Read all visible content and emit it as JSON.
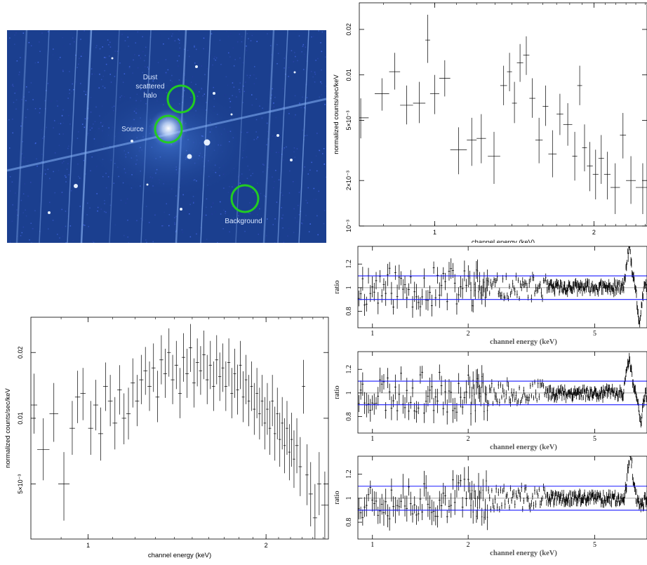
{
  "image_panel": {
    "labels": {
      "halo": [
        "Dust",
        "scattered",
        "halo"
      ],
      "source": "Source",
      "background": "Background"
    },
    "colors": {
      "sky": "#1b3f8f",
      "bright": "#bcd7ff",
      "circle": "#22cc22",
      "label": "#d8e6ff"
    }
  },
  "chart_data": [
    {
      "id": "halo-spectrum",
      "type": "scatter",
      "xlabel": "channel energy (keV)",
      "ylabel": "normalized counts/sec/keV",
      "xscale": "log",
      "yscale": "log",
      "xlim": [
        0.72,
        2.52
      ],
      "ylim": [
        0.001,
        0.03
      ],
      "xticks": [
        {
          "v": 1,
          "label": "1"
        },
        {
          "v": 2,
          "label": "2"
        }
      ],
      "yticks": [
        {
          "v": 0.001,
          "label": "10⁻³"
        },
        {
          "v": 0.002,
          "label": "2×10⁻³"
        },
        {
          "v": 0.005,
          "label": "5×10⁻³"
        },
        {
          "v": 0.01,
          "label": "0.01"
        },
        {
          "v": 0.02,
          "label": "0.02"
        }
      ],
      "points": [
        [
          0.7,
          0.75,
          0.0052,
          0.0038,
          0.007
        ],
        [
          0.77,
          0.82,
          0.0075,
          0.0058,
          0.0095
        ],
        [
          0.82,
          0.86,
          0.0105,
          0.008,
          0.014
        ],
        [
          0.86,
          0.91,
          0.0063,
          0.0047,
          0.0085
        ],
        [
          0.91,
          0.96,
          0.0065,
          0.0048,
          0.009
        ],
        [
          0.96,
          0.98,
          0.017,
          0.012,
          0.025
        ],
        [
          0.98,
          1.02,
          0.0075,
          0.0055,
          0.01
        ],
        [
          1.02,
          1.07,
          0.0095,
          0.0072,
          0.0125
        ],
        [
          1.07,
          1.15,
          0.0032,
          0.0022,
          0.0045
        ],
        [
          1.15,
          1.2,
          0.0037,
          0.0025,
          0.0052
        ],
        [
          1.2,
          1.25,
          0.0038,
          0.0026,
          0.0055
        ],
        [
          1.26,
          1.33,
          0.0029,
          0.0019,
          0.0042
        ],
        [
          1.33,
          1.37,
          0.0085,
          0.0063,
          0.0115
        ],
        [
          1.37,
          1.4,
          0.0105,
          0.0078,
          0.014
        ],
        [
          1.4,
          1.43,
          0.0065,
          0.0048,
          0.009
        ],
        [
          1.43,
          1.47,
          0.012,
          0.009,
          0.016
        ],
        [
          1.47,
          1.51,
          0.0135,
          0.01,
          0.018
        ],
        [
          1.51,
          1.55,
          0.007,
          0.0052,
          0.0095
        ],
        [
          1.55,
          1.6,
          0.0037,
          0.0026,
          0.0052
        ],
        [
          1.6,
          1.64,
          0.0062,
          0.0046,
          0.0085
        ],
        [
          1.64,
          1.7,
          0.003,
          0.0021,
          0.0043
        ],
        [
          1.7,
          1.75,
          0.0055,
          0.004,
          0.0075
        ],
        [
          1.75,
          1.82,
          0.0047,
          0.0034,
          0.0065
        ],
        [
          1.82,
          1.86,
          0.0029,
          0.002,
          0.0042
        ],
        [
          1.86,
          1.9,
          0.0085,
          0.0063,
          0.0115
        ],
        [
          1.9,
          1.94,
          0.0033,
          0.0023,
          0.0047
        ],
        [
          1.94,
          1.99,
          0.0025,
          0.0017,
          0.0036
        ],
        [
          1.99,
          2.04,
          0.0022,
          0.0015,
          0.0032
        ],
        [
          2.04,
          2.09,
          0.0028,
          0.0019,
          0.004
        ],
        [
          2.09,
          2.15,
          0.0022,
          0.0015,
          0.0031
        ],
        [
          2.15,
          2.24,
          0.0018,
          0.0012,
          0.0026
        ],
        [
          2.24,
          2.3,
          0.004,
          0.0028,
          0.0056
        ],
        [
          2.3,
          2.4,
          0.002,
          0.0014,
          0.0029
        ],
        [
          2.4,
          2.55,
          0.0018,
          0.0012,
          0.0026
        ]
      ]
    },
    {
      "id": "source-spectrum",
      "type": "scatter",
      "xlabel": "channel energy (keV)",
      "ylabel": "normalized counts/sec/keV",
      "xscale": "log",
      "yscale": "log",
      "xlim": [
        0.8,
        2.55
      ],
      "ylim": [
        0.0028,
        0.029
      ],
      "xticks": [
        {
          "v": 1,
          "label": "1"
        },
        {
          "v": 2,
          "label": "2"
        }
      ],
      "yticks": [
        {
          "v": 0.005,
          "label": "5×10⁻³"
        },
        {
          "v": 0.01,
          "label": "0.01"
        },
        {
          "v": 0.02,
          "label": "0.02"
        }
      ],
      "model": {
        "x": [
          0.8,
          0.95,
          1.2,
          1.5,
          1.7,
          1.85,
          2.0,
          2.2,
          2.4,
          2.55
        ],
        "y": [
          0.006,
          0.0075,
          0.0105,
          0.014,
          0.015,
          0.014,
          0.0115,
          0.009,
          0.0065,
          0.005
        ]
      },
      "points": [
        [
          0.8,
          0.82,
          0.0115,
          0.0085,
          0.016
        ],
        [
          0.82,
          0.86,
          0.0072,
          0.0052,
          0.01
        ],
        [
          0.86,
          0.89,
          0.0105,
          0.0078,
          0.0145
        ],
        [
          0.89,
          0.93,
          0.005,
          0.0034,
          0.007
        ],
        [
          0.93,
          0.95,
          0.009,
          0.0068,
          0.012
        ],
        [
          0.95,
          0.97,
          0.0125,
          0.0095,
          0.0165
        ],
        [
          0.97,
          0.99,
          0.013,
          0.0098,
          0.017
        ],
        [
          1.0,
          1.02,
          0.009,
          0.0068,
          0.012
        ],
        [
          1.02,
          1.04,
          0.0115,
          0.0088,
          0.015
        ],
        [
          1.04,
          1.06,
          0.0085,
          0.0064,
          0.0112
        ],
        [
          1.06,
          1.08,
          0.014,
          0.0108,
          0.018
        ],
        [
          1.08,
          1.1,
          0.012,
          0.0092,
          0.0158
        ],
        [
          1.1,
          1.12,
          0.0095,
          0.0072,
          0.0125
        ],
        [
          1.12,
          1.14,
          0.0135,
          0.0104,
          0.0175
        ],
        [
          1.14,
          1.16,
          0.01,
          0.0076,
          0.013
        ],
        [
          1.16,
          1.18,
          0.0105,
          0.008,
          0.0138
        ],
        [
          1.18,
          1.2,
          0.0145,
          0.0112,
          0.0188
        ],
        [
          1.2,
          1.22,
          0.012,
          0.0092,
          0.0158
        ],
        [
          1.22,
          1.24,
          0.015,
          0.0116,
          0.0195
        ],
        [
          1.24,
          1.26,
          0.0165,
          0.0128,
          0.0212
        ],
        [
          1.26,
          1.28,
          0.014,
          0.0108,
          0.0182
        ],
        [
          1.28,
          1.3,
          0.017,
          0.0132,
          0.022
        ],
        [
          1.3,
          1.32,
          0.0125,
          0.0096,
          0.0165
        ],
        [
          1.32,
          1.34,
          0.0185,
          0.0143,
          0.024
        ],
        [
          1.34,
          1.36,
          0.016,
          0.0124,
          0.0208
        ],
        [
          1.36,
          1.38,
          0.02,
          0.0155,
          0.0258
        ],
        [
          1.38,
          1.4,
          0.015,
          0.0116,
          0.0195
        ],
        [
          1.4,
          1.42,
          0.0175,
          0.0136,
          0.0226
        ],
        [
          1.42,
          1.44,
          0.013,
          0.01,
          0.017
        ],
        [
          1.44,
          1.46,
          0.019,
          0.0147,
          0.0245
        ],
        [
          1.46,
          1.48,
          0.016,
          0.0124,
          0.0208
        ],
        [
          1.48,
          1.5,
          0.021,
          0.0163,
          0.027
        ],
        [
          1.5,
          1.52,
          0.0145,
          0.0112,
          0.0188
        ],
        [
          1.52,
          1.54,
          0.018,
          0.014,
          0.0232
        ],
        [
          1.54,
          1.56,
          0.0165,
          0.0128,
          0.0214
        ],
        [
          1.56,
          1.58,
          0.0195,
          0.0151,
          0.0252
        ],
        [
          1.58,
          1.6,
          0.015,
          0.0116,
          0.0195
        ],
        [
          1.6,
          1.62,
          0.0175,
          0.0136,
          0.0226
        ],
        [
          1.62,
          1.64,
          0.014,
          0.0108,
          0.0182
        ],
        [
          1.64,
          1.66,
          0.0185,
          0.0143,
          0.024
        ],
        [
          1.66,
          1.68,
          0.0155,
          0.012,
          0.02
        ],
        [
          1.68,
          1.7,
          0.017,
          0.0132,
          0.022
        ],
        [
          1.7,
          1.72,
          0.014,
          0.0108,
          0.0182
        ],
        [
          1.72,
          1.74,
          0.018,
          0.014,
          0.0232
        ],
        [
          1.74,
          1.76,
          0.013,
          0.01,
          0.017
        ],
        [
          1.76,
          1.78,
          0.016,
          0.0124,
          0.0208
        ],
        [
          1.78,
          1.8,
          0.0135,
          0.0104,
          0.0176
        ],
        [
          1.8,
          1.82,
          0.0175,
          0.0136,
          0.0226
        ],
        [
          1.82,
          1.84,
          0.0125,
          0.0096,
          0.0164
        ],
        [
          1.84,
          1.86,
          0.015,
          0.0116,
          0.0195
        ],
        [
          1.86,
          1.88,
          0.012,
          0.0092,
          0.0158
        ],
        [
          1.88,
          1.9,
          0.014,
          0.0108,
          0.0182
        ],
        [
          1.9,
          1.92,
          0.011,
          0.0084,
          0.0145
        ],
        [
          1.92,
          1.94,
          0.013,
          0.01,
          0.017
        ],
        [
          1.94,
          1.96,
          0.0105,
          0.008,
          0.0138
        ],
        [
          1.96,
          1.98,
          0.012,
          0.0092,
          0.0158
        ],
        [
          1.98,
          2.0,
          0.0095,
          0.0072,
          0.0125
        ],
        [
          2.0,
          2.02,
          0.011,
          0.0084,
          0.0145
        ],
        [
          2.02,
          2.04,
          0.009,
          0.0068,
          0.012
        ],
        [
          2.04,
          2.06,
          0.012,
          0.0092,
          0.0158
        ],
        [
          2.06,
          2.08,
          0.0085,
          0.0064,
          0.0113
        ],
        [
          2.08,
          2.1,
          0.0105,
          0.008,
          0.0138
        ],
        [
          2.1,
          2.12,
          0.008,
          0.006,
          0.0106
        ],
        [
          2.12,
          2.14,
          0.0095,
          0.0072,
          0.0125
        ],
        [
          2.14,
          2.16,
          0.0075,
          0.0056,
          0.01
        ],
        [
          2.16,
          2.18,
          0.009,
          0.0068,
          0.012
        ],
        [
          2.18,
          2.2,
          0.007,
          0.0052,
          0.0094
        ],
        [
          2.2,
          2.22,
          0.008,
          0.006,
          0.0106
        ],
        [
          2.22,
          2.24,
          0.0065,
          0.0048,
          0.0088
        ],
        [
          2.24,
          2.27,
          0.0075,
          0.0056,
          0.01
        ],
        [
          2.27,
          2.3,
          0.006,
          0.0044,
          0.0082
        ],
        [
          2.3,
          2.33,
          0.014,
          0.0105,
          0.0185
        ],
        [
          2.33,
          2.36,
          0.0055,
          0.004,
          0.0076
        ],
        [
          2.36,
          2.4,
          0.0045,
          0.0032,
          0.0063
        ],
        [
          2.4,
          2.44,
          0.0035,
          0.0024,
          0.005
        ],
        [
          2.44,
          2.48,
          0.005,
          0.0036,
          0.007
        ],
        [
          2.48,
          2.55,
          0.004,
          0.0028,
          0.0057
        ]
      ]
    },
    {
      "id": "ratio-1",
      "type": "scatter",
      "xlabel": "channel energy (keV)",
      "ylabel": "ratio",
      "xscale": "log",
      "xlim": [
        0.9,
        7.3
      ],
      "ylim": [
        0.66,
        1.35
      ],
      "xticks": [
        {
          "v": 1,
          "label": "1"
        },
        {
          "v": 2,
          "label": "2"
        },
        {
          "v": 5,
          "label": "5"
        }
      ],
      "yticks": [
        {
          "v": 0.8,
          "label": "0.8"
        },
        {
          "v": 1,
          "label": "1"
        },
        {
          "v": 1.2,
          "label": "1.2"
        }
      ],
      "reference_lines": {
        "blue": [
          0.9,
          1.1
        ],
        "gray": [
          1.0
        ]
      },
      "feature": {
        "center": 6.4,
        "peak": 0.32,
        "dip_center": 6.9,
        "dip": 0.28
      },
      "seed": 11
    },
    {
      "id": "ratio-2",
      "type": "scatter",
      "xlabel": "channel energy (keV)",
      "ylabel": "ratio",
      "xscale": "log",
      "xlim": [
        0.9,
        7.3
      ],
      "ylim": [
        0.66,
        1.35
      ],
      "xticks": [
        {
          "v": 1,
          "label": "1"
        },
        {
          "v": 2,
          "label": "2"
        },
        {
          "v": 5,
          "label": "5"
        }
      ],
      "yticks": [
        {
          "v": 0.8,
          "label": "0.8"
        },
        {
          "v": 1,
          "label": "1"
        },
        {
          "v": 1.2,
          "label": "1.2"
        }
      ],
      "reference_lines": {
        "blue": [
          0.9,
          1.1
        ],
        "gray": [
          1.0
        ]
      },
      "feature": {
        "center": 6.4,
        "peak": 0.28,
        "dip_center": 6.95,
        "dip": 0.25
      },
      "seed": 23
    },
    {
      "id": "ratio-3",
      "type": "scatter",
      "xlabel": "channel energy (keV)",
      "ylabel": "ratio",
      "xscale": "log",
      "xlim": [
        0.9,
        7.3
      ],
      "ylim": [
        0.66,
        1.35
      ],
      "xticks": [
        {
          "v": 1,
          "label": "1"
        },
        {
          "v": 2,
          "label": "2"
        },
        {
          "v": 5,
          "label": "5"
        }
      ],
      "yticks": [
        {
          "v": 0.8,
          "label": "0.8"
        },
        {
          "v": 1,
          "label": "1"
        },
        {
          "v": 1.2,
          "label": "1.2"
        }
      ],
      "reference_lines": {
        "blue": [
          0.9,
          1.1
        ],
        "gray": [
          1.0
        ]
      },
      "feature": {
        "center": 6.45,
        "peak": 0.36,
        "dip_center": 7.0,
        "dip": 0.05
      },
      "seed": 37
    }
  ]
}
